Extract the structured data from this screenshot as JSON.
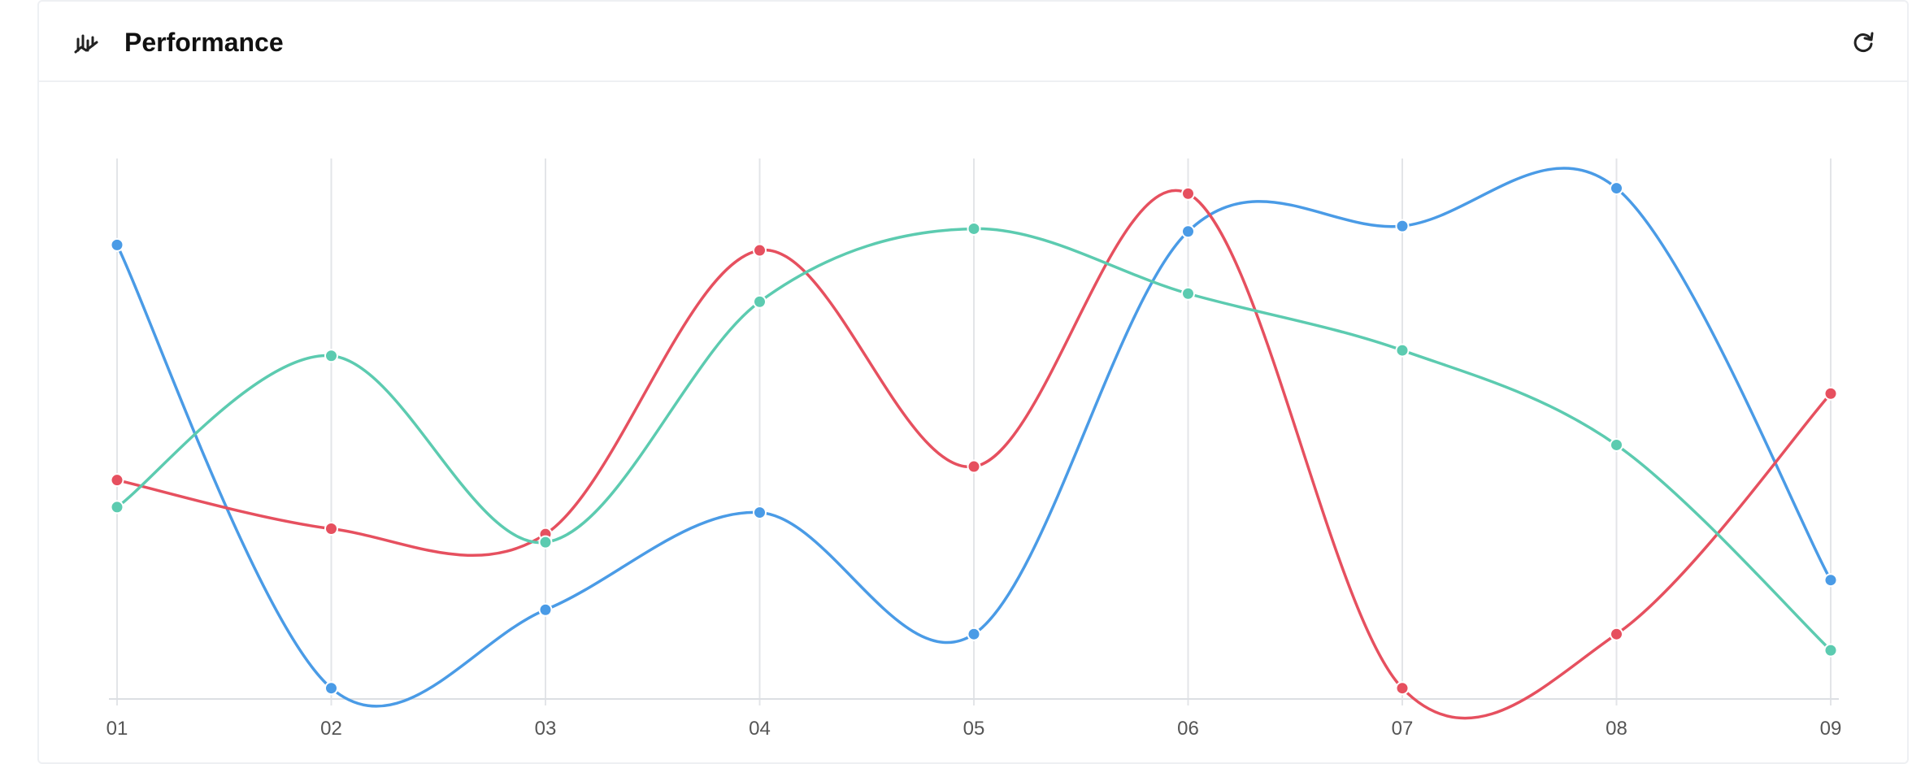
{
  "header": {
    "title": "Performance",
    "title_icon": "bar-chart-icon",
    "refresh_icon": "refresh-icon"
  },
  "chart_data": {
    "type": "line",
    "title": "Performance",
    "smooth": true,
    "grid": "vertical",
    "legend": "none",
    "categories": [
      "01",
      "02",
      "03",
      "04",
      "05",
      "06",
      "07",
      "08",
      "09"
    ],
    "ylim": [
      0,
      100
    ],
    "series": [
      {
        "color": "#4a9be6",
        "values": [
          84,
          2,
          16.5,
          34.5,
          12,
          86.5,
          87.5,
          94.5,
          22
        ]
      },
      {
        "color": "#e6505f",
        "values": [
          40.5,
          31.5,
          30.5,
          83,
          43,
          93.5,
          2,
          12,
          56.5
        ]
      },
      {
        "color": "#5ccbb0",
        "values": [
          35.5,
          63.5,
          29,
          73.5,
          87,
          75,
          64.5,
          47,
          9
        ]
      }
    ]
  }
}
